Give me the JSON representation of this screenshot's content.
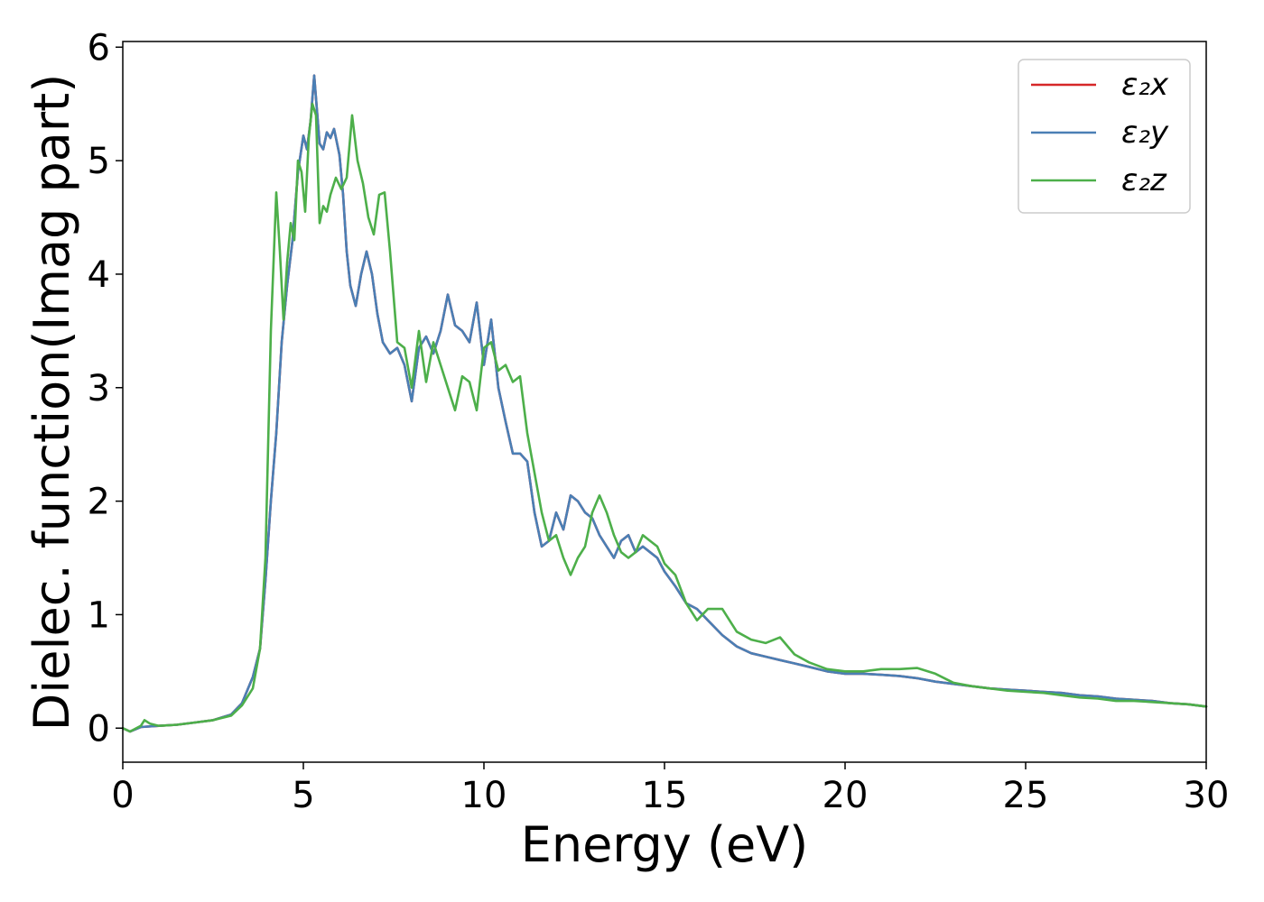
{
  "chart_data": {
    "type": "line",
    "title": "",
    "xlabel": "Energy (eV)",
    "ylabel": "Dielec. function(Imag part)",
    "xlim": [
      0,
      30
    ],
    "ylim": [
      -0.3,
      6.05
    ],
    "xticks": [
      0,
      5,
      10,
      15,
      20,
      25,
      30
    ],
    "yticks": [
      0,
      1,
      2,
      3,
      4,
      5,
      6
    ],
    "grid": false,
    "legend_position": "top-right",
    "series": [
      {
        "name": "ε₂x",
        "color": "#d62728",
        "x": [
          0,
          0.2,
          0.5,
          1,
          1.5,
          2,
          2.5,
          3,
          3.3,
          3.6,
          3.8,
          3.95,
          4.1,
          4.25,
          4.4,
          4.55,
          4.7,
          4.85,
          5.0,
          5.1,
          5.2,
          5.3,
          5.35,
          5.45,
          5.55,
          5.65,
          5.75,
          5.85,
          6.0,
          6.1,
          6.2,
          6.3,
          6.45,
          6.6,
          6.75,
          6.9,
          7.05,
          7.2,
          7.4,
          7.6,
          7.8,
          8.0,
          8.2,
          8.4,
          8.6,
          8.8,
          9.0,
          9.2,
          9.4,
          9.6,
          9.8,
          10.0,
          10.2,
          10.4,
          10.6,
          10.8,
          11.0,
          11.2,
          11.4,
          11.6,
          11.8,
          12.0,
          12.2,
          12.4,
          12.6,
          12.8,
          13.0,
          13.2,
          13.4,
          13.6,
          13.8,
          14.0,
          14.2,
          14.4,
          14.6,
          14.8,
          15.0,
          15.3,
          15.6,
          15.9,
          16.2,
          16.6,
          17.0,
          17.4,
          17.8,
          18.2,
          18.6,
          19.0,
          19.5,
          20.0,
          20.5,
          21.0,
          21.5,
          22.0,
          22.5,
          23.0,
          23.5,
          24.0,
          24.5,
          25.0,
          25.5,
          26.0,
          26.5,
          27.0,
          27.5,
          28.0,
          28.5,
          29.0,
          29.5,
          30.0
        ],
        "values": [
          0,
          -0.03,
          0.01,
          0.02,
          0.03,
          0.05,
          0.07,
          0.12,
          0.22,
          0.45,
          0.7,
          1.3,
          2.0,
          2.6,
          3.4,
          3.9,
          4.3,
          4.9,
          5.22,
          5.1,
          5.35,
          5.75,
          5.55,
          5.15,
          5.1,
          5.25,
          5.2,
          5.28,
          5.05,
          4.7,
          4.2,
          3.9,
          3.72,
          4.0,
          4.2,
          4.0,
          3.65,
          3.4,
          3.3,
          3.35,
          3.2,
          2.88,
          3.35,
          3.45,
          3.3,
          3.5,
          3.82,
          3.55,
          3.5,
          3.4,
          3.75,
          3.2,
          3.6,
          3.0,
          2.7,
          2.42,
          2.42,
          2.35,
          1.9,
          1.6,
          1.65,
          1.9,
          1.75,
          2.05,
          2.0,
          1.9,
          1.85,
          1.7,
          1.6,
          1.5,
          1.65,
          1.7,
          1.55,
          1.6,
          1.55,
          1.5,
          1.38,
          1.25,
          1.1,
          1.05,
          0.95,
          0.82,
          0.72,
          0.66,
          0.63,
          0.6,
          0.57,
          0.54,
          0.5,
          0.48,
          0.48,
          0.47,
          0.46,
          0.44,
          0.41,
          0.39,
          0.37,
          0.35,
          0.34,
          0.33,
          0.32,
          0.31,
          0.29,
          0.28,
          0.26,
          0.25,
          0.24,
          0.22,
          0.21,
          0.19
        ]
      },
      {
        "name": "ε₂y",
        "color": "#4a7fb5",
        "x": [
          0,
          0.2,
          0.5,
          1,
          1.5,
          2,
          2.5,
          3,
          3.3,
          3.6,
          3.8,
          3.95,
          4.1,
          4.25,
          4.4,
          4.55,
          4.7,
          4.85,
          5.0,
          5.1,
          5.2,
          5.3,
          5.35,
          5.45,
          5.55,
          5.65,
          5.75,
          5.85,
          6.0,
          6.1,
          6.2,
          6.3,
          6.45,
          6.6,
          6.75,
          6.9,
          7.05,
          7.2,
          7.4,
          7.6,
          7.8,
          8.0,
          8.2,
          8.4,
          8.6,
          8.8,
          9.0,
          9.2,
          9.4,
          9.6,
          9.8,
          10.0,
          10.2,
          10.4,
          10.6,
          10.8,
          11.0,
          11.2,
          11.4,
          11.6,
          11.8,
          12.0,
          12.2,
          12.4,
          12.6,
          12.8,
          13.0,
          13.2,
          13.4,
          13.6,
          13.8,
          14.0,
          14.2,
          14.4,
          14.6,
          14.8,
          15.0,
          15.3,
          15.6,
          15.9,
          16.2,
          16.6,
          17.0,
          17.4,
          17.8,
          18.2,
          18.6,
          19.0,
          19.5,
          20.0,
          20.5,
          21.0,
          21.5,
          22.0,
          22.5,
          23.0,
          23.5,
          24.0,
          24.5,
          25.0,
          25.5,
          26.0,
          26.5,
          27.0,
          27.5,
          28.0,
          28.5,
          29.0,
          29.5,
          30.0
        ],
        "values": [
          0,
          -0.03,
          0.01,
          0.02,
          0.03,
          0.05,
          0.07,
          0.12,
          0.22,
          0.45,
          0.7,
          1.3,
          2.0,
          2.6,
          3.4,
          3.9,
          4.3,
          4.9,
          5.22,
          5.1,
          5.35,
          5.75,
          5.55,
          5.15,
          5.1,
          5.25,
          5.2,
          5.28,
          5.05,
          4.7,
          4.2,
          3.9,
          3.72,
          4.0,
          4.2,
          4.0,
          3.65,
          3.4,
          3.3,
          3.35,
          3.2,
          2.88,
          3.35,
          3.45,
          3.3,
          3.5,
          3.82,
          3.55,
          3.5,
          3.4,
          3.75,
          3.2,
          3.6,
          3.0,
          2.7,
          2.42,
          2.42,
          2.35,
          1.9,
          1.6,
          1.65,
          1.9,
          1.75,
          2.05,
          2.0,
          1.9,
          1.85,
          1.7,
          1.6,
          1.5,
          1.65,
          1.7,
          1.55,
          1.6,
          1.55,
          1.5,
          1.38,
          1.25,
          1.1,
          1.05,
          0.95,
          0.82,
          0.72,
          0.66,
          0.63,
          0.6,
          0.57,
          0.54,
          0.5,
          0.48,
          0.48,
          0.47,
          0.46,
          0.44,
          0.41,
          0.39,
          0.37,
          0.35,
          0.34,
          0.33,
          0.32,
          0.31,
          0.29,
          0.28,
          0.26,
          0.25,
          0.24,
          0.22,
          0.21,
          0.19
        ]
      },
      {
        "name": "ε₂z",
        "color": "#4daf4a",
        "x": [
          0,
          0.2,
          0.5,
          0.6,
          0.75,
          1,
          1.5,
          2,
          2.5,
          3,
          3.3,
          3.6,
          3.8,
          3.95,
          4.1,
          4.25,
          4.35,
          4.45,
          4.55,
          4.65,
          4.75,
          4.85,
          4.95,
          5.05,
          5.15,
          5.25,
          5.35,
          5.45,
          5.55,
          5.65,
          5.75,
          5.9,
          6.05,
          6.2,
          6.35,
          6.5,
          6.65,
          6.8,
          6.95,
          7.1,
          7.25,
          7.4,
          7.6,
          7.8,
          8.0,
          8.2,
          8.4,
          8.6,
          8.8,
          9.0,
          9.2,
          9.4,
          9.6,
          9.8,
          10.0,
          10.2,
          10.4,
          10.6,
          10.8,
          11.0,
          11.2,
          11.4,
          11.6,
          11.8,
          12.0,
          12.2,
          12.4,
          12.6,
          12.8,
          13.0,
          13.2,
          13.4,
          13.6,
          13.8,
          14.0,
          14.2,
          14.4,
          14.6,
          14.8,
          15.0,
          15.3,
          15.6,
          15.9,
          16.2,
          16.6,
          17.0,
          17.4,
          17.8,
          18.2,
          18.6,
          19.0,
          19.5,
          20.0,
          20.5,
          21.0,
          21.5,
          22.0,
          22.5,
          23.0,
          23.5,
          24.0,
          24.5,
          25.0,
          25.5,
          26.0,
          26.5,
          27.0,
          27.5,
          28.0,
          28.5,
          29.0,
          29.5,
          30.0
        ],
        "values": [
          0,
          -0.03,
          0.02,
          0.07,
          0.04,
          0.02,
          0.03,
          0.05,
          0.07,
          0.11,
          0.2,
          0.35,
          0.7,
          1.5,
          3.5,
          4.72,
          4.2,
          3.6,
          4.1,
          4.45,
          4.3,
          5.0,
          4.9,
          4.55,
          5.2,
          5.5,
          5.4,
          4.45,
          4.6,
          4.55,
          4.7,
          4.85,
          4.75,
          4.85,
          5.4,
          5.0,
          4.8,
          4.5,
          4.35,
          4.7,
          4.72,
          4.2,
          3.4,
          3.35,
          3.0,
          3.5,
          3.05,
          3.4,
          3.2,
          3.0,
          2.8,
          3.1,
          3.05,
          2.8,
          3.35,
          3.4,
          3.15,
          3.2,
          3.05,
          3.1,
          2.6,
          2.25,
          1.9,
          1.65,
          1.7,
          1.5,
          1.35,
          1.5,
          1.6,
          1.9,
          2.05,
          1.9,
          1.7,
          1.55,
          1.5,
          1.55,
          1.7,
          1.65,
          1.6,
          1.45,
          1.35,
          1.1,
          0.95,
          1.05,
          1.05,
          0.85,
          0.78,
          0.75,
          0.8,
          0.65,
          0.58,
          0.52,
          0.5,
          0.5,
          0.52,
          0.52,
          0.53,
          0.48,
          0.4,
          0.37,
          0.35,
          0.33,
          0.32,
          0.31,
          0.29,
          0.27,
          0.26,
          0.24,
          0.24,
          0.23,
          0.22,
          0.21,
          0.19
        ]
      }
    ]
  }
}
